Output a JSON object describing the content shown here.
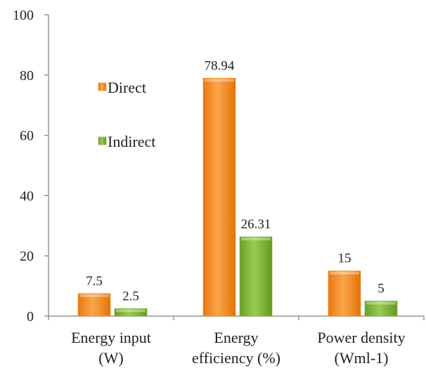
{
  "chart_data": {
    "type": "bar",
    "categories": [
      [
        "Energy input",
        "(W)"
      ],
      [
        "Energy",
        "efficiency (%)"
      ],
      [
        "Power density",
        "(Wml-1)"
      ]
    ],
    "series": [
      {
        "name": "Direct",
        "values": [
          7.5,
          78.94,
          15
        ],
        "labels": [
          "7.5",
          "78.94",
          "15"
        ],
        "color": "#f28a1e"
      },
      {
        "name": "Indirect",
        "values": [
          2.5,
          26.31,
          5
        ],
        "labels": [
          "2.5",
          "26.31",
          "5"
        ],
        "color": "#7fb231"
      }
    ],
    "ylim": [
      0,
      100
    ],
    "yticks": [
      0,
      20,
      40,
      60,
      80,
      100
    ],
    "title": "",
    "xlabel": "",
    "ylabel": "",
    "grid": false,
    "legend_position": "upper-left inside"
  }
}
